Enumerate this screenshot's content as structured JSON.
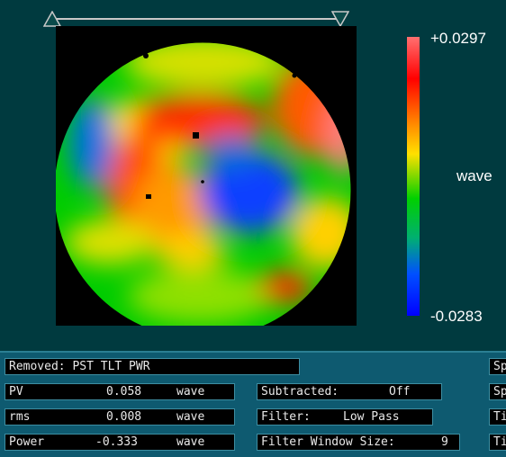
{
  "colorbar": {
    "max_label": "+0.0297",
    "unit_label": "wave",
    "min_label": "-0.0283",
    "colors": [
      "#ff6a6a",
      "#ff0000",
      "#ff8c00",
      "#ffd400",
      "#00d000",
      "#00c070",
      "#0060ff",
      "#0000ff"
    ]
  },
  "info": {
    "removed": "Removed: PST TLT PWR",
    "pv": {
      "label": "PV",
      "value": "0.058",
      "unit": "wave"
    },
    "rms": {
      "label": "rms",
      "value": "0.008",
      "unit": "wave"
    },
    "power": {
      "label": "Power",
      "value": "-0.333",
      "unit": "wave"
    },
    "subtracted": {
      "label": "Subtracted:",
      "value": "Off"
    },
    "filter": {
      "label": "Filter:",
      "value": "Low Pass"
    },
    "filter_window": {
      "label": "Filter Window Size:",
      "value": "9"
    },
    "clipped": [
      "Sp",
      "Sp",
      "Ti",
      "Ti"
    ]
  }
}
